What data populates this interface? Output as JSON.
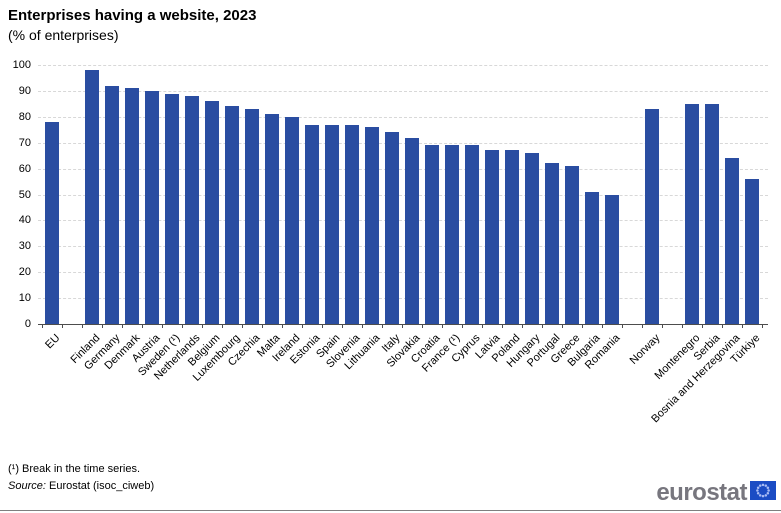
{
  "chart_data": {
    "type": "bar",
    "title": "Enterprises having a website, 2023",
    "subtitle": "(% of enterprises)",
    "xlabel": "",
    "ylabel": "",
    "ylim": [
      0,
      100
    ],
    "yticks": [
      0,
      10,
      20,
      30,
      40,
      50,
      60,
      70,
      80,
      90,
      100
    ],
    "grid": "horizontal-dashed",
    "legend": "none",
    "bar_color": "#2a4da1",
    "categories": [
      "EU",
      "",
      "Finland",
      "Germany",
      "Denmark",
      "Austria",
      "Sweden (¹)",
      "Netherlands",
      "Belgium",
      "Luxembourg",
      "Czechia",
      "Malta",
      "Ireland",
      "Estonia",
      "Spain",
      "Slovenia",
      "Lithuania",
      "Italy",
      "Slovakia",
      "Croatia",
      "France (¹)",
      "Cyprus",
      "Latvia",
      "Poland",
      "Hungary",
      "Portugal",
      "Greece",
      "Bulgaria",
      "Romania",
      "",
      "Norway",
      "",
      "Montenegro",
      "Serbia",
      "Bosnia and Herzegovina",
      "Türkiye"
    ],
    "values": [
      78,
      null,
      98,
      92,
      91,
      90,
      89,
      88,
      86,
      84,
      83,
      81,
      80,
      77,
      77,
      77,
      76,
      74,
      72,
      69,
      69,
      69,
      67,
      67,
      66,
      62,
      61,
      51,
      50,
      null,
      83,
      null,
      85,
      85,
      64,
      56
    ]
  },
  "footnotes": {
    "break_note": "(¹) Break in the time series.",
    "source_label": "Source:",
    "source_text": "Eurostat (isoc_ciweb)"
  },
  "logo": {
    "text": "eurostat",
    "text_color": "#77767e",
    "flag_color": "#1b4cc4",
    "stars_color": "#a9bcf5"
  },
  "colors": {
    "bar": "#2a4da1",
    "gridline": "#d8d8d8",
    "axis": "#4d4d4d"
  }
}
